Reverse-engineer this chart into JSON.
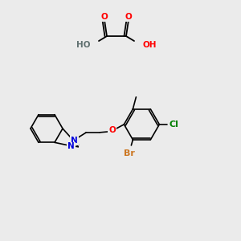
{
  "bg_color": "#ebebeb",
  "atom_colors": {
    "O": "#ff0000",
    "N": "#0000dd",
    "Cl": "#008000",
    "Br": "#cc7722",
    "H": "#607070",
    "C": "#000000"
  },
  "bond_color": "#000000",
  "font_size": 7.5,
  "fig_width": 3.0,
  "fig_height": 3.0,
  "dpi": 100
}
